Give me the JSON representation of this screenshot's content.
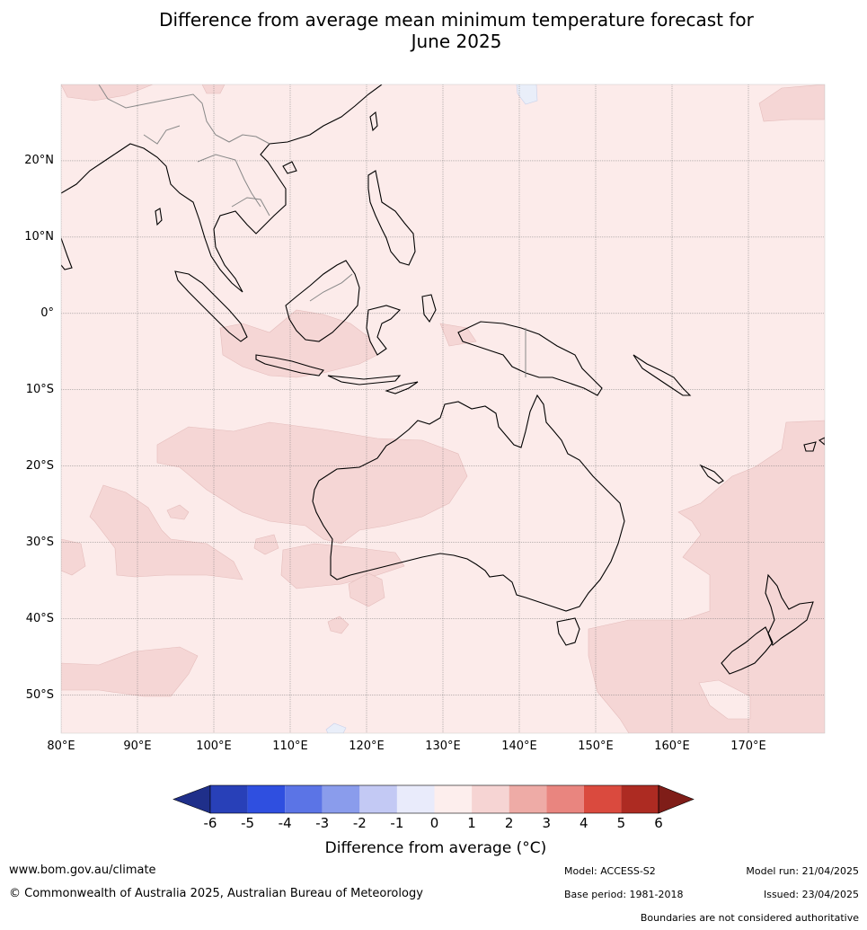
{
  "title_line1": "Difference from average mean minimum temperature forecast for",
  "title_line2": "June 2025",
  "lat_labels": [
    "20°N",
    "10°N",
    "0°",
    "10°S",
    "20°S",
    "30°S",
    "40°S",
    "50°S"
  ],
  "lon_labels": [
    "80°E",
    "90°E",
    "100°E",
    "110°E",
    "120°E",
    "130°E",
    "140°E",
    "150°E",
    "160°E",
    "170°E"
  ],
  "colorbar": {
    "ticks": [
      "-6",
      "-5",
      "-4",
      "-3",
      "-2",
      "-1",
      "0",
      "1",
      "2",
      "3",
      "4",
      "5",
      "6"
    ],
    "colors": [
      "#1f2f8a",
      "#2840b8",
      "#2f4fe0",
      "#5b74e6",
      "#8a9cec",
      "#c3c9f4",
      "#e9ebfb",
      "#fdeeed",
      "#f6d4d3",
      "#eeaba6",
      "#e9857f",
      "#da4a3e",
      "#ad2b22",
      "#7f1d18"
    ],
    "label": "Difference from average (°C)"
  },
  "map": {
    "lon_range": [
      80,
      180
    ],
    "lat_range": [
      -55,
      30
    ],
    "background_color": "#fcebea",
    "warm_anomaly_color": "#f5d6d5",
    "cool_anomaly_color": "#e9eef9",
    "gridlines": true
  },
  "footer": {
    "url": "www.bom.gov.au/climate",
    "copyright": "© Commonwealth of Australia 2025, Australian Bureau of Meteorology",
    "model": "Model: ACCESS-S2",
    "base_period": "Base period: 1981-2018",
    "model_run": "Model run: 21/04/2025",
    "issued": "Issued: 23/04/2025",
    "disclaimer": "Boundaries are not considered authoritative"
  }
}
